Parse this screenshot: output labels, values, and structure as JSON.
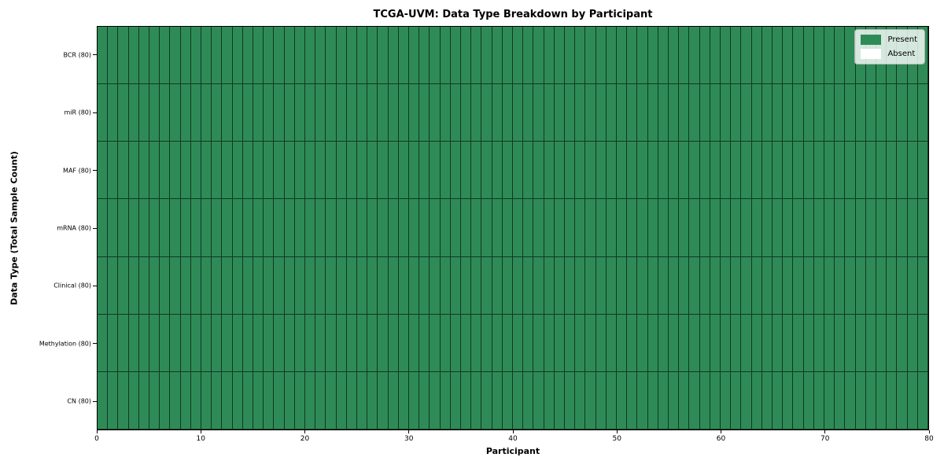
{
  "chart_data": {
    "type": "heatmap",
    "title": "TCGA-UVM: Data Type Breakdown by Participant",
    "xlabel": "Participant",
    "ylabel": "Data Type (Total Sample Count)",
    "xlim": [
      0,
      80
    ],
    "x_ticks": [
      0,
      10,
      20,
      30,
      40,
      50,
      60,
      70,
      80
    ],
    "n_participants": 80,
    "rows": [
      {
        "label": "BCR (80)",
        "data_type": "BCR",
        "total_sample_count": 80,
        "present_count": 80,
        "absent_count": 0
      },
      {
        "label": "miR (80)",
        "data_type": "miR",
        "total_sample_count": 80,
        "present_count": 80,
        "absent_count": 0
      },
      {
        "label": "MAF (80)",
        "data_type": "MAF",
        "total_sample_count": 80,
        "present_count": 80,
        "absent_count": 0
      },
      {
        "label": "mRNA (80)",
        "data_type": "mRNA",
        "total_sample_count": 80,
        "present_count": 80,
        "absent_count": 0
      },
      {
        "label": "Clinical (80)",
        "data_type": "Clinical",
        "total_sample_count": 80,
        "present_count": 80,
        "absent_count": 0
      },
      {
        "label": "Methylation (80)",
        "data_type": "Methylation",
        "total_sample_count": 80,
        "present_count": 80,
        "absent_count": 0
      },
      {
        "label": "CN (80)",
        "data_type": "CN",
        "total_sample_count": 80,
        "present_count": 80,
        "absent_count": 0
      }
    ],
    "cell_value_encoding": {
      "present": 1,
      "absent": 0
    },
    "legend": [
      {
        "label": "Present",
        "color": "#2E8B57"
      },
      {
        "label": "Absent",
        "color": "#FFFFFF"
      }
    ],
    "legend_position": "upper right",
    "grid": "off",
    "colors": {
      "present": "#2E8B57",
      "absent": "#FFFFFF",
      "cell_border": "rgba(0,0,0,0.60)",
      "spine": "#000000"
    }
  }
}
